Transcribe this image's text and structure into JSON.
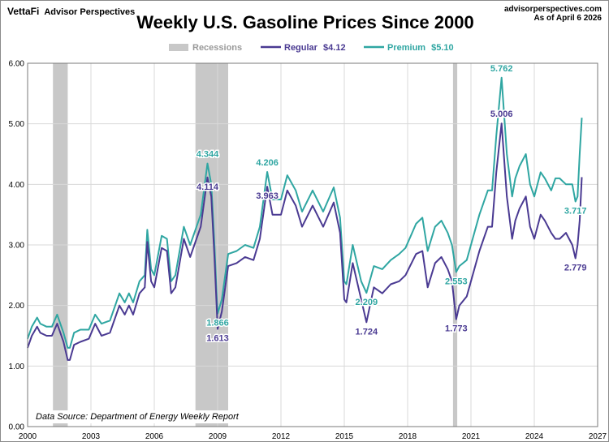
{
  "header": {
    "brand_logo": "VettaFi",
    "brand_name": "Advisor Perspectives",
    "site": "advisorperspectives.com",
    "as_of": "As of April 6 2026"
  },
  "colors": {
    "regular": "#4a3a92",
    "premium": "#2fa6a2",
    "recession": "#c8c8c8",
    "grid": "#d9d9d9"
  },
  "chart_data": {
    "type": "line",
    "title": "Weekly U.S. Gasoline Prices Since 2000",
    "source_note": "Data Source: Department of Energy Weekly Report",
    "xlim": [
      2000,
      2027
    ],
    "ylim": [
      0,
      6
    ],
    "x_ticks": [
      {
        "value": 2000,
        "label": "2000"
      },
      {
        "value": 2003,
        "label": "2003"
      },
      {
        "value": 2006,
        "label": "2006"
      },
      {
        "value": 2009,
        "label": "2009"
      },
      {
        "value": 2012,
        "label": "2012"
      },
      {
        "value": 2015,
        "label": "2015"
      },
      {
        "value": 2018,
        "label": "2018"
      },
      {
        "value": 2021,
        "label": "2021"
      },
      {
        "value": 2024,
        "label": "2024"
      },
      {
        "value": 2027,
        "label": "2027"
      }
    ],
    "y_ticks": [
      {
        "value": 0,
        "label": "0.00"
      },
      {
        "value": 1,
        "label": "1.00"
      },
      {
        "value": 2,
        "label": "2.00"
      },
      {
        "value": 3,
        "label": "3.00"
      },
      {
        "value": 4,
        "label": "4.00"
      },
      {
        "value": 5,
        "label": "5.00"
      },
      {
        "value": 6,
        "label": "6.00"
      }
    ],
    "grid": true,
    "legend": {
      "placement": "top",
      "recessions_label": "Recessions",
      "regular_label": "Regular",
      "regular_value": "$4.12",
      "premium_label": "Premium",
      "premium_value": "$5.10"
    },
    "recessions": [
      [
        2001.2,
        2001.9
      ],
      [
        2007.95,
        2009.5
      ],
      [
        2020.15,
        2020.35
      ]
    ],
    "series": [
      {
        "name": "Regular",
        "x": [
          2000.0,
          2000.2,
          2000.45,
          2000.6,
          2000.9,
          2001.15,
          2001.4,
          2001.7,
          2001.9,
          2002.0,
          2002.2,
          2002.5,
          2002.9,
          2003.2,
          2003.5,
          2003.9,
          2004.35,
          2004.6,
          2004.8,
          2005.0,
          2005.3,
          2005.55,
          2005.67,
          2005.85,
          2006.0,
          2006.35,
          2006.6,
          2006.8,
          2007.0,
          2007.4,
          2007.7,
          2008.0,
          2008.2,
          2008.52,
          2008.7,
          2008.85,
          2008.97,
          2009.0,
          2009.2,
          2009.5,
          2009.9,
          2010.3,
          2010.7,
          2011.0,
          2011.35,
          2011.6,
          2012.0,
          2012.3,
          2012.7,
          2013.0,
          2013.5,
          2014.0,
          2014.5,
          2014.8,
          2015.0,
          2015.1,
          2015.4,
          2015.8,
          2016.05,
          2016.4,
          2016.8,
          2017.2,
          2017.6,
          2017.9,
          2018.4,
          2018.7,
          2018.95,
          2019.3,
          2019.6,
          2019.9,
          2020.1,
          2020.3,
          2020.45,
          2020.8,
          2021.0,
          2021.4,
          2021.8,
          2022.0,
          2022.2,
          2022.45,
          2022.7,
          2022.95,
          2023.1,
          2023.3,
          2023.6,
          2023.8,
          2024.0,
          2024.3,
          2024.5,
          2024.8,
          2025.0,
          2025.2,
          2025.5,
          2025.8,
          2025.95,
          2026.05,
          2026.15,
          2026.25
        ],
        "values": [
          1.3,
          1.5,
          1.65,
          1.55,
          1.5,
          1.5,
          1.7,
          1.4,
          1.1,
          1.1,
          1.35,
          1.4,
          1.45,
          1.7,
          1.5,
          1.55,
          2.0,
          1.85,
          2.0,
          1.85,
          2.2,
          2.3,
          3.05,
          2.4,
          2.3,
          2.95,
          2.9,
          2.2,
          2.3,
          3.1,
          2.8,
          3.1,
          3.3,
          4.114,
          3.8,
          2.8,
          1.866,
          1.613,
          1.9,
          2.65,
          2.7,
          2.8,
          2.75,
          3.1,
          3.963,
          3.5,
          3.5,
          3.9,
          3.65,
          3.3,
          3.65,
          3.3,
          3.7,
          3.2,
          2.1,
          2.05,
          2.7,
          2.1,
          1.724,
          2.3,
          2.2,
          2.35,
          2.4,
          2.5,
          2.85,
          2.9,
          2.3,
          2.7,
          2.8,
          2.6,
          2.4,
          1.773,
          2.0,
          2.15,
          2.4,
          2.9,
          3.3,
          3.3,
          4.2,
          5.006,
          3.8,
          3.1,
          3.4,
          3.6,
          3.8,
          3.3,
          3.1,
          3.5,
          3.4,
          3.2,
          3.1,
          3.1,
          3.2,
          3.0,
          2.779,
          3.0,
          3.4,
          4.12
        ]
      },
      {
        "name": "Premium",
        "x": [
          2000.0,
          2000.2,
          2000.45,
          2000.6,
          2000.9,
          2001.15,
          2001.4,
          2001.7,
          2001.9,
          2002.0,
          2002.2,
          2002.5,
          2002.9,
          2003.2,
          2003.5,
          2003.9,
          2004.35,
          2004.6,
          2004.8,
          2005.0,
          2005.3,
          2005.55,
          2005.67,
          2005.85,
          2006.0,
          2006.35,
          2006.6,
          2006.8,
          2007.0,
          2007.4,
          2007.7,
          2008.0,
          2008.2,
          2008.52,
          2008.7,
          2008.85,
          2008.97,
          2009.0,
          2009.2,
          2009.5,
          2009.9,
          2010.3,
          2010.7,
          2011.0,
          2011.35,
          2011.6,
          2012.0,
          2012.3,
          2012.7,
          2013.0,
          2013.5,
          2014.0,
          2014.5,
          2014.8,
          2015.0,
          2015.1,
          2015.4,
          2015.8,
          2016.05,
          2016.4,
          2016.8,
          2017.2,
          2017.6,
          2017.9,
          2018.4,
          2018.7,
          2018.95,
          2019.3,
          2019.6,
          2019.9,
          2020.1,
          2020.3,
          2020.45,
          2020.8,
          2021.0,
          2021.4,
          2021.8,
          2022.0,
          2022.2,
          2022.45,
          2022.7,
          2022.95,
          2023.1,
          2023.3,
          2023.6,
          2023.8,
          2024.0,
          2024.3,
          2024.5,
          2024.8,
          2025.0,
          2025.2,
          2025.5,
          2025.8,
          2025.95,
          2026.05,
          2026.15,
          2026.25
        ],
        "values": [
          1.45,
          1.65,
          1.8,
          1.7,
          1.65,
          1.65,
          1.85,
          1.55,
          1.3,
          1.3,
          1.55,
          1.6,
          1.6,
          1.85,
          1.7,
          1.75,
          2.2,
          2.05,
          2.2,
          2.05,
          2.4,
          2.5,
          3.25,
          2.6,
          2.5,
          3.15,
          3.1,
          2.4,
          2.5,
          3.3,
          3.0,
          3.3,
          3.5,
          4.344,
          4.0,
          3.0,
          2.05,
          1.866,
          2.1,
          2.85,
          2.9,
          3.0,
          2.95,
          3.3,
          4.206,
          3.75,
          3.75,
          4.15,
          3.9,
          3.55,
          3.9,
          3.55,
          3.95,
          3.45,
          2.4,
          2.35,
          3.0,
          2.4,
          2.209,
          2.65,
          2.6,
          2.75,
          2.85,
          2.95,
          3.35,
          3.45,
          2.9,
          3.3,
          3.4,
          3.2,
          3.0,
          2.553,
          2.65,
          2.75,
          3.0,
          3.5,
          3.9,
          3.9,
          4.8,
          5.762,
          4.5,
          3.8,
          4.1,
          4.3,
          4.5,
          4.0,
          3.8,
          4.2,
          4.1,
          3.9,
          4.1,
          4.1,
          4.0,
          4.0,
          3.717,
          3.8,
          4.5,
          5.1
        ]
      }
    ],
    "annotations": [
      {
        "series": "Premium",
        "x": 2008.52,
        "y": 4.344,
        "text": "4.344",
        "pos": "above"
      },
      {
        "series": "Regular",
        "x": 2008.52,
        "y": 4.114,
        "text": "4.114",
        "pos": "below"
      },
      {
        "series": "Premium",
        "x": 2011.35,
        "y": 4.206,
        "text": "4.206",
        "pos": "above"
      },
      {
        "series": "Regular",
        "x": 2011.35,
        "y": 3.963,
        "text": "3.963",
        "pos": "below"
      },
      {
        "series": "Premium",
        "x": 2009.0,
        "y": 1.866,
        "text": "1.866",
        "pos": "below"
      },
      {
        "series": "Regular",
        "x": 2009.0,
        "y": 1.613,
        "text": "1.613",
        "pos": "below"
      },
      {
        "series": "Premium",
        "x": 2016.05,
        "y": 2.209,
        "text": "2.209",
        "pos": "below"
      },
      {
        "series": "Regular",
        "x": 2016.05,
        "y": 1.724,
        "text": "1.724",
        "pos": "below"
      },
      {
        "series": "Premium",
        "x": 2020.3,
        "y": 2.553,
        "text": "2.553",
        "pos": "below"
      },
      {
        "series": "Regular",
        "x": 2020.3,
        "y": 1.773,
        "text": "1.773",
        "pos": "below"
      },
      {
        "series": "Premium",
        "x": 2022.45,
        "y": 5.762,
        "text": "5.762",
        "pos": "above"
      },
      {
        "series": "Regular",
        "x": 2022.45,
        "y": 5.006,
        "text": "5.006",
        "pos": "above"
      },
      {
        "series": "Premium",
        "x": 2025.95,
        "y": 3.717,
        "text": "3.717",
        "pos": "below"
      },
      {
        "series": "Regular",
        "x": 2025.95,
        "y": 2.779,
        "text": "2.779",
        "pos": "below"
      }
    ]
  }
}
